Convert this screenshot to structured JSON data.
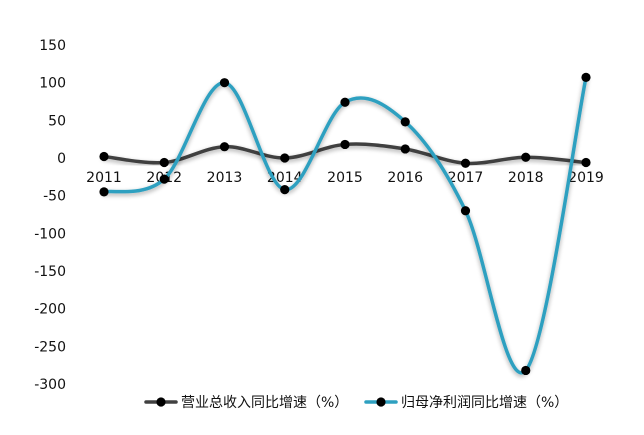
{
  "chart_data": {
    "type": "line",
    "smooth": true,
    "title": "",
    "xlabel": "",
    "ylabel": "",
    "categories": [
      "2011",
      "2012",
      "2013",
      "2014",
      "2015",
      "2016",
      "2017",
      "2018",
      "2019"
    ],
    "ylim": [
      -300,
      150
    ],
    "yticks": [
      150,
      100,
      50,
      0,
      -50,
      -100,
      -150,
      -200,
      -250,
      -300
    ],
    "grid": false,
    "legend_position": "bottom",
    "series": [
      {
        "name": "营业总收入同比增速（%）",
        "color": "#404040",
        "marker": "circle",
        "values": [
          2,
          -6,
          15,
          0,
          18,
          12,
          -7,
          1,
          -6
        ]
      },
      {
        "name": "归母净利润同比增速（%）",
        "color": "#2ea0c0",
        "marker": "circle",
        "values": [
          -45,
          -28,
          100,
          -42,
          74,
          48,
          -70,
          -282,
          107
        ]
      }
    ]
  }
}
